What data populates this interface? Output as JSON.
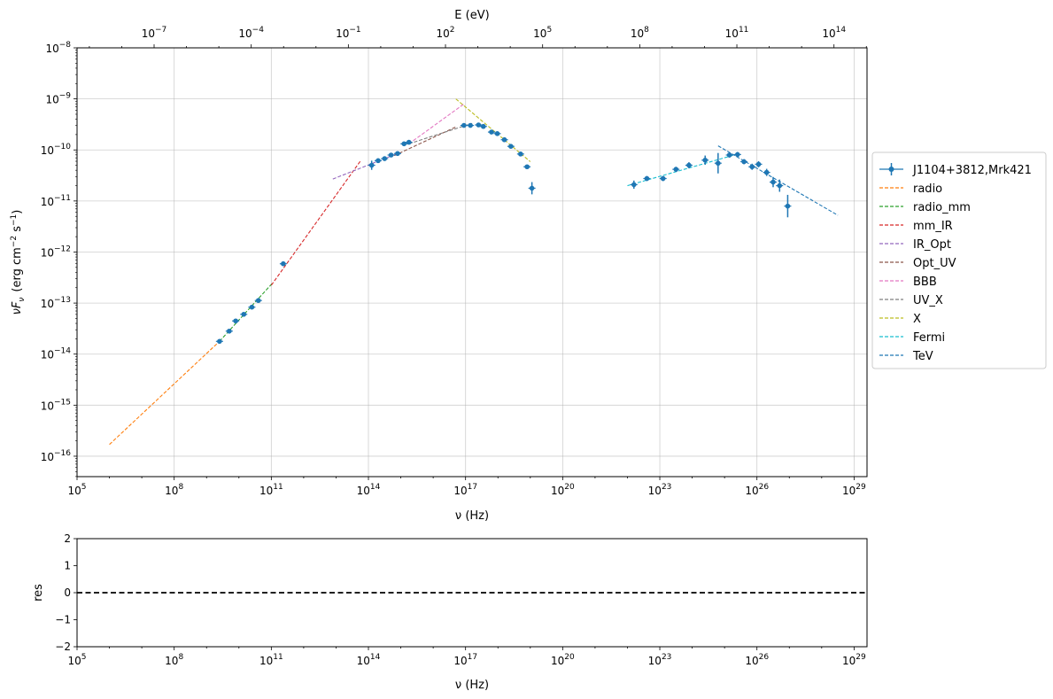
{
  "chart_data": [
    {
      "type": "scatter",
      "title": "",
      "top_axis_label": "E (eV)",
      "xlabel": "ν  (Hz)",
      "ylabel": "νF",
      "ylabel_sub": "ν",
      "ylabel_units": "(erg cm",
      "ylabel_exp1": "−2",
      "ylabel_s": " s",
      "ylabel_exp2": "−1",
      "ylabel_close": ")",
      "xscale": "log",
      "yscale": "log",
      "xlim_log10": [
        5,
        29.4
      ],
      "ylim_log10": [
        -16.4,
        -8
      ],
      "top_xlim_log10_eV": [
        -9.38,
        15.02
      ],
      "grid": true,
      "legend_position": "right-outside",
      "x_ticks_log10": [
        5,
        8,
        11,
        14,
        17,
        20,
        23,
        26,
        29
      ],
      "y_ticks_log10": [
        -16,
        -15,
        -14,
        -13,
        -12,
        -11,
        -10,
        -9,
        -8
      ],
      "top_ticks_log10": [
        -7,
        -4,
        -1,
        2,
        5,
        8,
        11,
        14
      ],
      "tick_base": "10",
      "data_series": {
        "name": "J1104+3812,Mrk421",
        "color": "#1f77b4",
        "points": [
          {
            "x": 9.4,
            "y": -13.75,
            "dy": 0.03
          },
          {
            "x": 9.7,
            "y": -13.55,
            "dy": 0.03
          },
          {
            "x": 9.9,
            "y": -13.35,
            "dy": 0.03
          },
          {
            "x": 10.15,
            "y": -13.22,
            "dy": 0.03
          },
          {
            "x": 10.4,
            "y": -13.08,
            "dy": 0.03
          },
          {
            "x": 10.6,
            "y": -12.95,
            "dy": 0.03
          },
          {
            "x": 11.37,
            "y": -12.23,
            "dy": 0.03
          },
          {
            "x": 14.1,
            "y": -10.3,
            "dy": 0.09
          },
          {
            "x": 14.3,
            "y": -10.21,
            "dy": 0.04
          },
          {
            "x": 14.5,
            "y": -10.17,
            "dy": 0.04
          },
          {
            "x": 14.7,
            "y": -10.1,
            "dy": 0.04
          },
          {
            "x": 14.9,
            "y": -10.07,
            "dy": 0.04
          },
          {
            "x": 15.1,
            "y": -9.88,
            "dy": 0.04
          },
          {
            "x": 15.25,
            "y": -9.85,
            "dy": 0.04
          },
          {
            "x": 16.95,
            "y": -9.52,
            "dy": 0.03
          },
          {
            "x": 17.15,
            "y": -9.52,
            "dy": 0.03
          },
          {
            "x": 17.4,
            "y": -9.51,
            "dy": 0.03
          },
          {
            "x": 17.55,
            "y": -9.54,
            "dy": 0.03
          },
          {
            "x": 17.8,
            "y": -9.65,
            "dy": 0.03
          },
          {
            "x": 17.98,
            "y": -9.68,
            "dy": 0.03
          },
          {
            "x": 18.2,
            "y": -9.8,
            "dy": 0.03
          },
          {
            "x": 18.4,
            "y": -9.93,
            "dy": 0.03
          },
          {
            "x": 18.7,
            "y": -10.08,
            "dy": 0.03
          },
          {
            "x": 18.9,
            "y": -10.33,
            "dy": 0.03
          },
          {
            "x": 19.05,
            "y": -10.75,
            "dy": 0.12
          },
          {
            "x": 22.2,
            "y": -10.68,
            "dy": 0.08
          },
          {
            "x": 22.6,
            "y": -10.56,
            "dy": 0.05
          },
          {
            "x": 23.1,
            "y": -10.56,
            "dy": 0.05
          },
          {
            "x": 23.5,
            "y": -10.38,
            "dy": 0.05
          },
          {
            "x": 23.9,
            "y": -10.3,
            "dy": 0.06
          },
          {
            "x": 24.4,
            "y": -10.2,
            "dy": 0.09
          },
          {
            "x": 24.8,
            "y": -10.26,
            "dy": 0.2
          },
          {
            "x": 25.15,
            "y": -10.1,
            "dy": 0.05
          },
          {
            "x": 25.4,
            "y": -10.09,
            "dy": 0.05
          },
          {
            "x": 25.6,
            "y": -10.23,
            "dy": 0.05
          },
          {
            "x": 25.85,
            "y": -10.33,
            "dy": 0.06
          },
          {
            "x": 26.05,
            "y": -10.28,
            "dy": 0.06
          },
          {
            "x": 26.3,
            "y": -10.44,
            "dy": 0.07
          },
          {
            "x": 26.5,
            "y": -10.63,
            "dy": 0.1
          },
          {
            "x": 26.7,
            "y": -10.7,
            "dy": 0.12
          },
          {
            "x": 26.95,
            "y": -11.1,
            "dy": 0.22
          }
        ]
      },
      "model_lines": [
        {
          "name": "radio",
          "color": "#ff7f0e",
          "points": [
            [
              6.0,
              -15.77
            ],
            [
              9.4,
              -13.75
            ]
          ]
        },
        {
          "name": "radio_mm",
          "color": "#2ca02c",
          "points": [
            [
              9.4,
              -13.75
            ],
            [
              11.05,
              -12.6
            ]
          ]
        },
        {
          "name": "mm_IR",
          "color": "#d62728",
          "points": [
            [
              11.0,
              -12.65
            ],
            [
              13.75,
              -10.22
            ]
          ]
        },
        {
          "name": "IR_Opt",
          "color": "#9467bd",
          "points": [
            [
              12.9,
              -10.57
            ],
            [
              14.9,
              -10.07
            ]
          ]
        },
        {
          "name": "Opt_UV",
          "color": "#8c564b",
          "points": [
            [
              14.8,
              -10.11
            ],
            [
              16.7,
              -9.55
            ]
          ]
        },
        {
          "name": "BBB",
          "color": "#e377c2",
          "points": [
            [
              15.25,
              -9.88
            ],
            [
              16.95,
              -9.1
            ]
          ]
        },
        {
          "name": "UV_X",
          "color": "#7f7f7f",
          "points": [
            [
              15.25,
              -9.88
            ],
            [
              17.2,
              -9.48
            ]
          ]
        },
        {
          "name": "X",
          "color": "#bcbd22",
          "points": [
            [
              16.7,
              -9.0
            ],
            [
              19.0,
              -10.23
            ]
          ]
        },
        {
          "name": "Fermi",
          "color": "#17becf",
          "points": [
            [
              22.0,
              -10.7
            ],
            [
              25.4,
              -10.08
            ]
          ]
        },
        {
          "name": "TeV",
          "color": "#1f77b4",
          "points": [
            [
              24.8,
              -9.92
            ],
            [
              28.5,
              -11.28
            ]
          ]
        }
      ]
    },
    {
      "type": "line",
      "title": "",
      "xlabel": "ν  (Hz)",
      "ylabel": "res",
      "xscale": "log",
      "xlim_log10": [
        5,
        29.4
      ],
      "ylim": [
        -2,
        2
      ],
      "x_ticks_log10": [
        5,
        8,
        11,
        14,
        17,
        20,
        23,
        26,
        29
      ],
      "y_ticks": [
        2,
        1,
        0,
        -1,
        -2
      ],
      "y_tick_labels": [
        "2",
        "1",
        "0",
        "−1",
        "−2"
      ],
      "grid": false,
      "reference_line": {
        "y": 0,
        "style": "dashed",
        "color": "#000000"
      }
    }
  ]
}
